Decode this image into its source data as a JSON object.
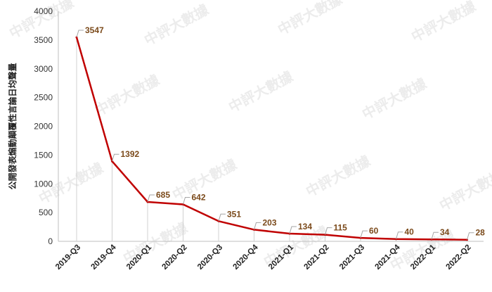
{
  "chart_data": {
    "type": "line",
    "categories": [
      "2019-Q3",
      "2019-Q4",
      "2020-Q1",
      "2020-Q2",
      "2020-Q3",
      "2020-Q4",
      "2021-Q1",
      "2021-Q2",
      "2021-Q3",
      "2021-Q4",
      "2022-Q1",
      "2022-Q2"
    ],
    "series": [
      {
        "values": [
          3547,
          1392,
          685,
          642,
          351,
          203,
          134,
          115,
          60,
          40,
          34,
          28
        ]
      }
    ],
    "data_labels": [
      "3547",
      "1392",
      "685",
      "642",
      "351",
      "203",
      "134",
      "115",
      "60",
      "40",
      "34",
      "28"
    ],
    "ylabel": "公開發表煽動顛覆性言論日均聲量",
    "xlabel": "",
    "ylim": [
      0,
      4000
    ],
    "yticks": [
      0,
      500,
      1000,
      1500,
      2000,
      2500,
      3000,
      3500,
      4000
    ],
    "grid": false,
    "legend": "none",
    "colors": {
      "line": "#c00000",
      "data_label": "#7b4a1b",
      "leader": "#a6a6a6",
      "axis": "#bfbfbf"
    }
  },
  "watermark": {
    "text": "中評大數據"
  }
}
